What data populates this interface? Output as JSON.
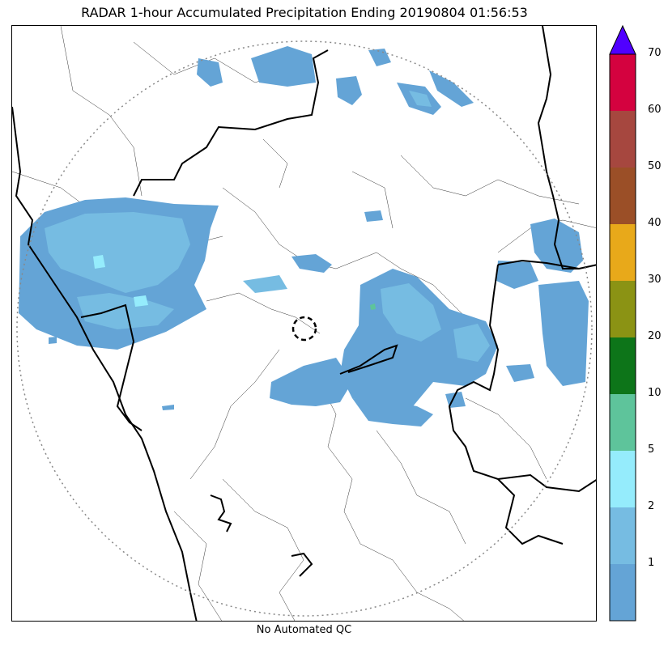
{
  "title": "RADAR 1-hour Accumulated Precipitation Ending 20190804 01:56:53",
  "footer": "No Automated QC",
  "colorbar": {
    "labels": [
      "1",
      "2",
      "5",
      "10",
      "20",
      "30",
      "40",
      "50",
      "60",
      "70"
    ],
    "colors": [
      "#64a4d6",
      "#76bce2",
      "#95ecfc",
      "#5ec49b",
      "#0d7519",
      "#8b9314",
      "#e8a91a",
      "#9b4f27",
      "#a6473f",
      "#d4023f"
    ],
    "extend_color": "#5000ff"
  },
  "map": {
    "precip_colors": {
      "light": "#64a4d6",
      "medium": "#76bce2",
      "heavy": "#95ecfc",
      "green": "#5ec49b"
    },
    "range_ring_color": "#888888",
    "border_color": "#000000"
  }
}
